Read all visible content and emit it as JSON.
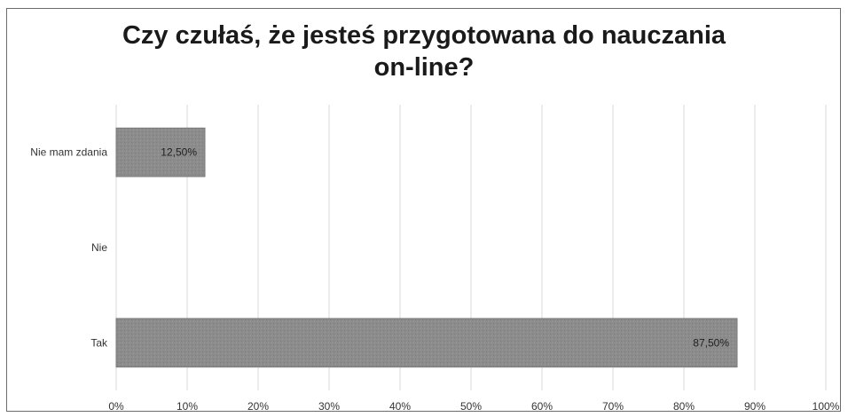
{
  "chart_data": {
    "type": "bar",
    "orientation": "horizontal",
    "title_lines": [
      "Czy czułaś, że jesteś przygotowana do nauczania",
      "on-line?"
    ],
    "categories": [
      "Nie mam zdania",
      "Nie",
      "Tak"
    ],
    "values": [
      12.5,
      0,
      87.5
    ],
    "data_labels": [
      "12,50%",
      "",
      "87,50%"
    ],
    "x_ticks": [
      "0%",
      "10%",
      "20%",
      "30%",
      "40%",
      "50%",
      "60%",
      "70%",
      "80%",
      "90%",
      "100%"
    ],
    "xlim": [
      0,
      100
    ],
    "grid": true,
    "legend": "none",
    "colors": {
      "bar": "#8c8c8c",
      "bar_stroke": "#7a7a7a",
      "grid": "#d9d9d9",
      "text": "#333333"
    }
  }
}
